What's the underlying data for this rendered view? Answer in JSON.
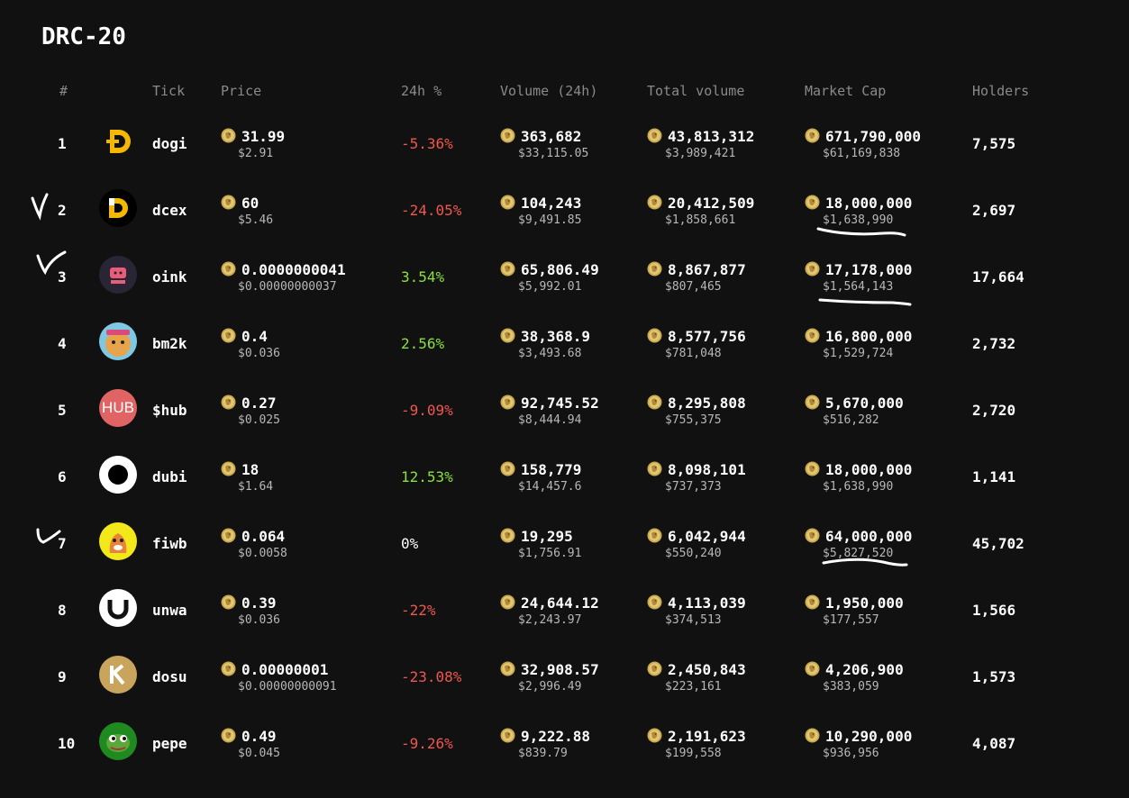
{
  "page": {
    "title": "DRC-20"
  },
  "colors": {
    "background": "#111111",
    "negative": "#f0574f",
    "positive": "#8ae23a",
    "coin": "#c9a94a"
  },
  "headers": {
    "rank": "#",
    "tick": "Tick",
    "price": "Price",
    "change": "24h %",
    "volume": "Volume (24h)",
    "total_volume": "Total volume",
    "market_cap": "Market Cap",
    "holders": "Holders"
  },
  "rows": [
    {
      "rank": "1",
      "tick": "dogi",
      "logo": "dogi-logo",
      "price": "31.99",
      "price_usd": "$2.91",
      "change": "-5.36%",
      "trend": "neg",
      "volume": "363,682",
      "volume_usd": "$33,115.05",
      "total_volume": "43,813,312",
      "total_volume_usd": "$3,989,421",
      "market_cap": "671,790,000",
      "market_cap_usd": "$61,169,838",
      "holders": "7,575"
    },
    {
      "rank": "2",
      "tick": "dcex",
      "logo": "dcex-logo",
      "price": "60",
      "price_usd": "$5.46",
      "change": "-24.05%",
      "trend": "neg",
      "volume": "104,243",
      "volume_usd": "$9,491.85",
      "total_volume": "20,412,509",
      "total_volume_usd": "$1,858,661",
      "market_cap": "18,000,000",
      "market_cap_usd": "$1,638,990",
      "holders": "2,697"
    },
    {
      "rank": "3",
      "tick": "oink",
      "logo": "oink-logo",
      "price": "0.0000000041",
      "price_usd": "$0.00000000037",
      "change": "3.54%",
      "trend": "pos",
      "volume": "65,806.49",
      "volume_usd": "$5,992.01",
      "total_volume": "8,867,877",
      "total_volume_usd": "$807,465",
      "market_cap": "17,178,000",
      "market_cap_usd": "$1,564,143",
      "holders": "17,664"
    },
    {
      "rank": "4",
      "tick": "bm2k",
      "logo": "bm2k-logo",
      "price": "0.4",
      "price_usd": "$0.036",
      "change": "2.56%",
      "trend": "pos",
      "volume": "38,368.9",
      "volume_usd": "$3,493.68",
      "total_volume": "8,577,756",
      "total_volume_usd": "$781,048",
      "market_cap": "16,800,000",
      "market_cap_usd": "$1,529,724",
      "holders": "2,732"
    },
    {
      "rank": "5",
      "tick": "$hub",
      "logo": "hub-logo",
      "price": "0.27",
      "price_usd": "$0.025",
      "change": "-9.09%",
      "trend": "neg",
      "volume": "92,745.52",
      "volume_usd": "$8,444.94",
      "total_volume": "8,295,808",
      "total_volume_usd": "$755,375",
      "market_cap": "5,670,000",
      "market_cap_usd": "$516,282",
      "holders": "2,720"
    },
    {
      "rank": "6",
      "tick": "dubi",
      "logo": "dubi-logo",
      "price": "18",
      "price_usd": "$1.64",
      "change": "12.53%",
      "trend": "pos",
      "volume": "158,779",
      "volume_usd": "$14,457.6",
      "total_volume": "8,098,101",
      "total_volume_usd": "$737,373",
      "market_cap": "18,000,000",
      "market_cap_usd": "$1,638,990",
      "holders": "1,141"
    },
    {
      "rank": "7",
      "tick": "fiwb",
      "logo": "fiwb-logo",
      "price": "0.064",
      "price_usd": "$0.0058",
      "change": "0%",
      "trend": "zero",
      "volume": "19,295",
      "volume_usd": "$1,756.91",
      "total_volume": "6,042,944",
      "total_volume_usd": "$550,240",
      "market_cap": "64,000,000",
      "market_cap_usd": "$5,827,520",
      "holders": "45,702"
    },
    {
      "rank": "8",
      "tick": "unwa",
      "logo": "unwa-logo",
      "price": "0.39",
      "price_usd": "$0.036",
      "change": "-22%",
      "trend": "neg",
      "volume": "24,644.12",
      "volume_usd": "$2,243.97",
      "total_volume": "4,113,039",
      "total_volume_usd": "$374,513",
      "market_cap": "1,950,000",
      "market_cap_usd": "$177,557",
      "holders": "1,566"
    },
    {
      "rank": "9",
      "tick": "dosu",
      "logo": "dosu-logo",
      "price": "0.00000001",
      "price_usd": "$0.00000000091",
      "change": "-23.08%",
      "trend": "neg",
      "volume": "32,908.57",
      "volume_usd": "$2,996.49",
      "total_volume": "2,450,843",
      "total_volume_usd": "$223,161",
      "market_cap": "4,206,900",
      "market_cap_usd": "$383,059",
      "holders": "1,573"
    },
    {
      "rank": "10",
      "tick": "pepe",
      "logo": "pepe-logo",
      "price": "0.49",
      "price_usd": "$0.045",
      "change": "-9.26%",
      "trend": "neg",
      "volume": "9,222.88",
      "volume_usd": "$839.79",
      "total_volume": "2,191,623",
      "total_volume_usd": "$199,558",
      "market_cap": "10,290,000",
      "market_cap_usd": "$936,956",
      "holders": "4,087"
    }
  ]
}
